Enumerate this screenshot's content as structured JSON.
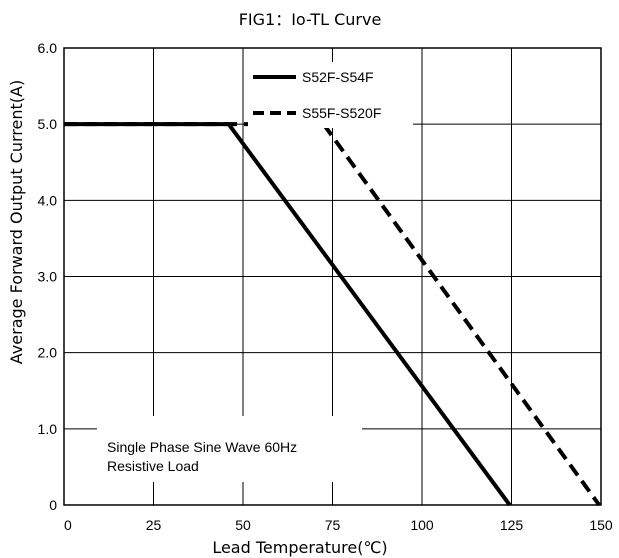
{
  "chart_data": {
    "type": "line",
    "title": "FIG1：Io-TL Curve",
    "xlabel": "Lead Temperature(℃)",
    "ylabel": "Average Forward Output Current(A)",
    "xlim": [
      0,
      150
    ],
    "ylim": [
      0,
      6
    ],
    "xticks": [
      0,
      25,
      50,
      75,
      100,
      125,
      150
    ],
    "xtick_labels": [
      "0",
      "25",
      "50",
      "75",
      "100",
      "125",
      "150"
    ],
    "yticks": [
      0,
      1,
      2,
      3,
      4,
      5,
      6
    ],
    "ytick_labels": [
      "0",
      "1.0",
      "2.0",
      "3.0",
      "4.0",
      "5.0",
      "6.0"
    ],
    "grid": true,
    "legend_position": "top-center",
    "series": [
      {
        "name": "S52F-S54F",
        "style": "solid",
        "color": "#000000",
        "x": [
          0,
          46,
          124.5
        ],
        "y": [
          5,
          5,
          0
        ]
      },
      {
        "name": "S55F-S520F",
        "style": "dashed",
        "color": "#000000",
        "x": [
          0,
          72.5,
          149.5
        ],
        "y": [
          5,
          5,
          0
        ]
      }
    ],
    "annotations": [
      "Single Phase Sine Wave 60Hz",
      "Resistive Load"
    ]
  }
}
